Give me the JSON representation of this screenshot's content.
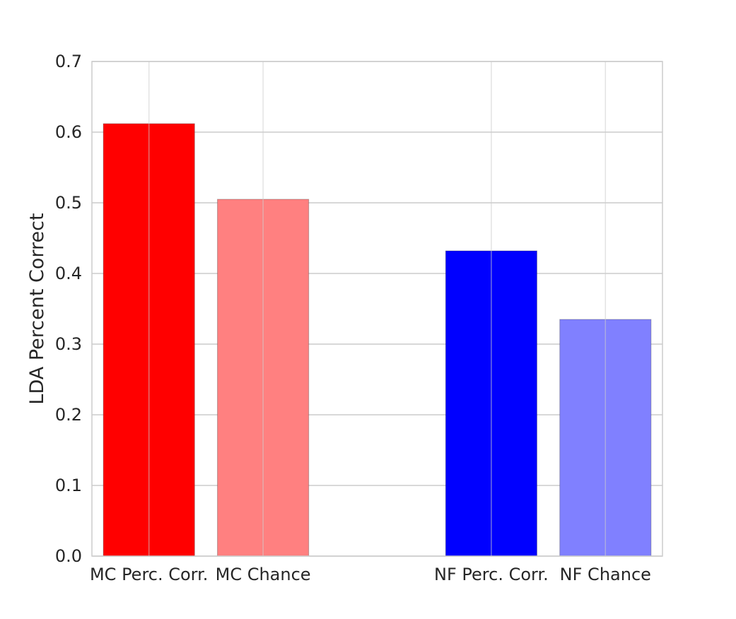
{
  "chart_data": {
    "type": "bar",
    "title": "",
    "xlabel": "",
    "ylabel": "LDA Percent Correct",
    "ylim": [
      0,
      0.7
    ],
    "yticks": [
      "0.0",
      "0.1",
      "0.2",
      "0.3",
      "0.4",
      "0.5",
      "0.6",
      "0.7"
    ],
    "grid": true,
    "categories": [
      "MC Perc. Corr.",
      "MC Chance",
      "NF Perc. Corr.",
      "NF Chance"
    ],
    "values": [
      0.612,
      0.505,
      0.432,
      0.335
    ],
    "colors": [
      "#ff0000",
      "#ff8080",
      "#0000ff",
      "#8080ff"
    ],
    "bar_x": [
      0.5,
      1.5,
      3.5,
      4.5
    ],
    "xlim": [
      0,
      5
    ]
  }
}
